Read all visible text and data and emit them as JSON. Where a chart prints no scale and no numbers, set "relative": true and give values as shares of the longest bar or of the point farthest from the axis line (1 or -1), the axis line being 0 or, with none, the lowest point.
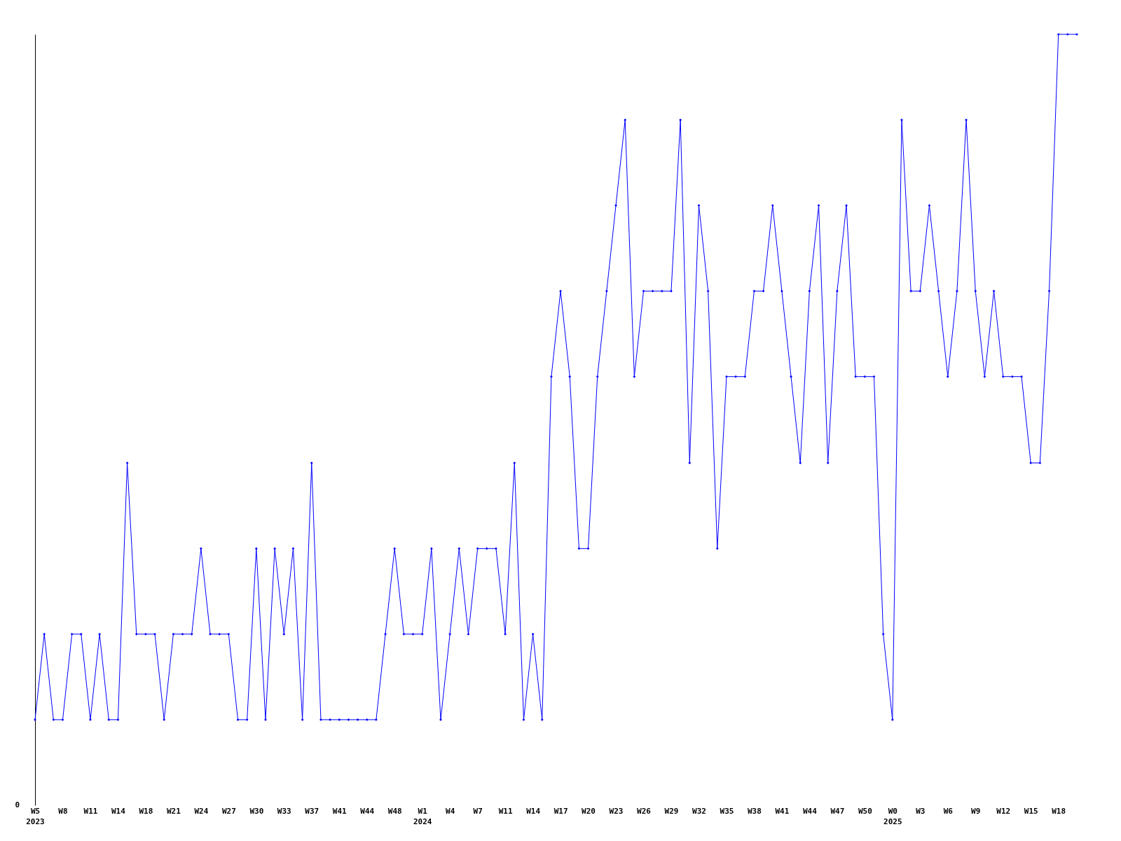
{
  "chart_data": {
    "type": "line",
    "relative": true,
    "marker": "diamond",
    "line_style": "solid",
    "grid": false,
    "categories": [
      "W5\n2023",
      null,
      null,
      "W8",
      null,
      null,
      "W11",
      null,
      null,
      "W14",
      null,
      null,
      "W18",
      null,
      null,
      "W21",
      null,
      null,
      "W24",
      null,
      null,
      "W27",
      null,
      null,
      "W30",
      null,
      null,
      "W33",
      null,
      null,
      "W37",
      null,
      null,
      "W41",
      null,
      null,
      "W44",
      null,
      null,
      "W48",
      null,
      null,
      "W1\n2024",
      null,
      null,
      "W4",
      null,
      null,
      "W7",
      null,
      null,
      "W11",
      null,
      null,
      "W14",
      null,
      null,
      "W17",
      null,
      null,
      "W20",
      null,
      null,
      "W23",
      null,
      null,
      "W26",
      null,
      null,
      "W29",
      null,
      null,
      "W32",
      null,
      null,
      "W35",
      null,
      null,
      "W38",
      null,
      null,
      "W41",
      null,
      null,
      "W44",
      null,
      null,
      "W47",
      null,
      null,
      "W50",
      null,
      null,
      "W0\n2025",
      null,
      null,
      "W3",
      null,
      null,
      "W6",
      null,
      null,
      "W9",
      null,
      null,
      "W12",
      null,
      null,
      "W15",
      null,
      null,
      "W18",
      null,
      null
    ],
    "series": [
      {
        "color": "#0000ff",
        "values": [
          0.111,
          0.222,
          0.111,
          0.111,
          0.222,
          0.222,
          0.111,
          0.222,
          0.111,
          0.111,
          0.444,
          0.222,
          0.222,
          0.222,
          0.111,
          0.222,
          0.222,
          0.222,
          0.333,
          0.222,
          0.222,
          0.222,
          0.111,
          0.111,
          0.333,
          0.111,
          0.333,
          0.222,
          0.333,
          0.111,
          0.444,
          0.111,
          0.111,
          0.111,
          0.111,
          0.111,
          0.111,
          0.111,
          0.222,
          0.333,
          0.222,
          0.222,
          0.222,
          0.333,
          0.111,
          0.222,
          0.333,
          0.222,
          0.333,
          0.333,
          0.333,
          0.222,
          0.444,
          0.111,
          0.222,
          0.111,
          0.556,
          0.667,
          0.556,
          0.333,
          0.333,
          0.556,
          0.667,
          0.778,
          0.889,
          0.556,
          0.667,
          0.667,
          0.667,
          0.667,
          0.889,
          0.444,
          0.778,
          0.667,
          0.333,
          0.556,
          0.556,
          0.556,
          0.667,
          0.667,
          0.778,
          0.667,
          0.556,
          0.444,
          0.667,
          0.778,
          0.444,
          0.667,
          0.778,
          0.556,
          0.556,
          0.556,
          0.222,
          0.111,
          0.889,
          0.667,
          0.667,
          0.778,
          0.667,
          0.556,
          0.667,
          0.889,
          0.667,
          0.556,
          0.667,
          0.556,
          0.556,
          0.556,
          0.444,
          0.444,
          0.667,
          1,
          1,
          1
        ]
      }
    ],
    "annotations": [
      "0"
    ]
  }
}
